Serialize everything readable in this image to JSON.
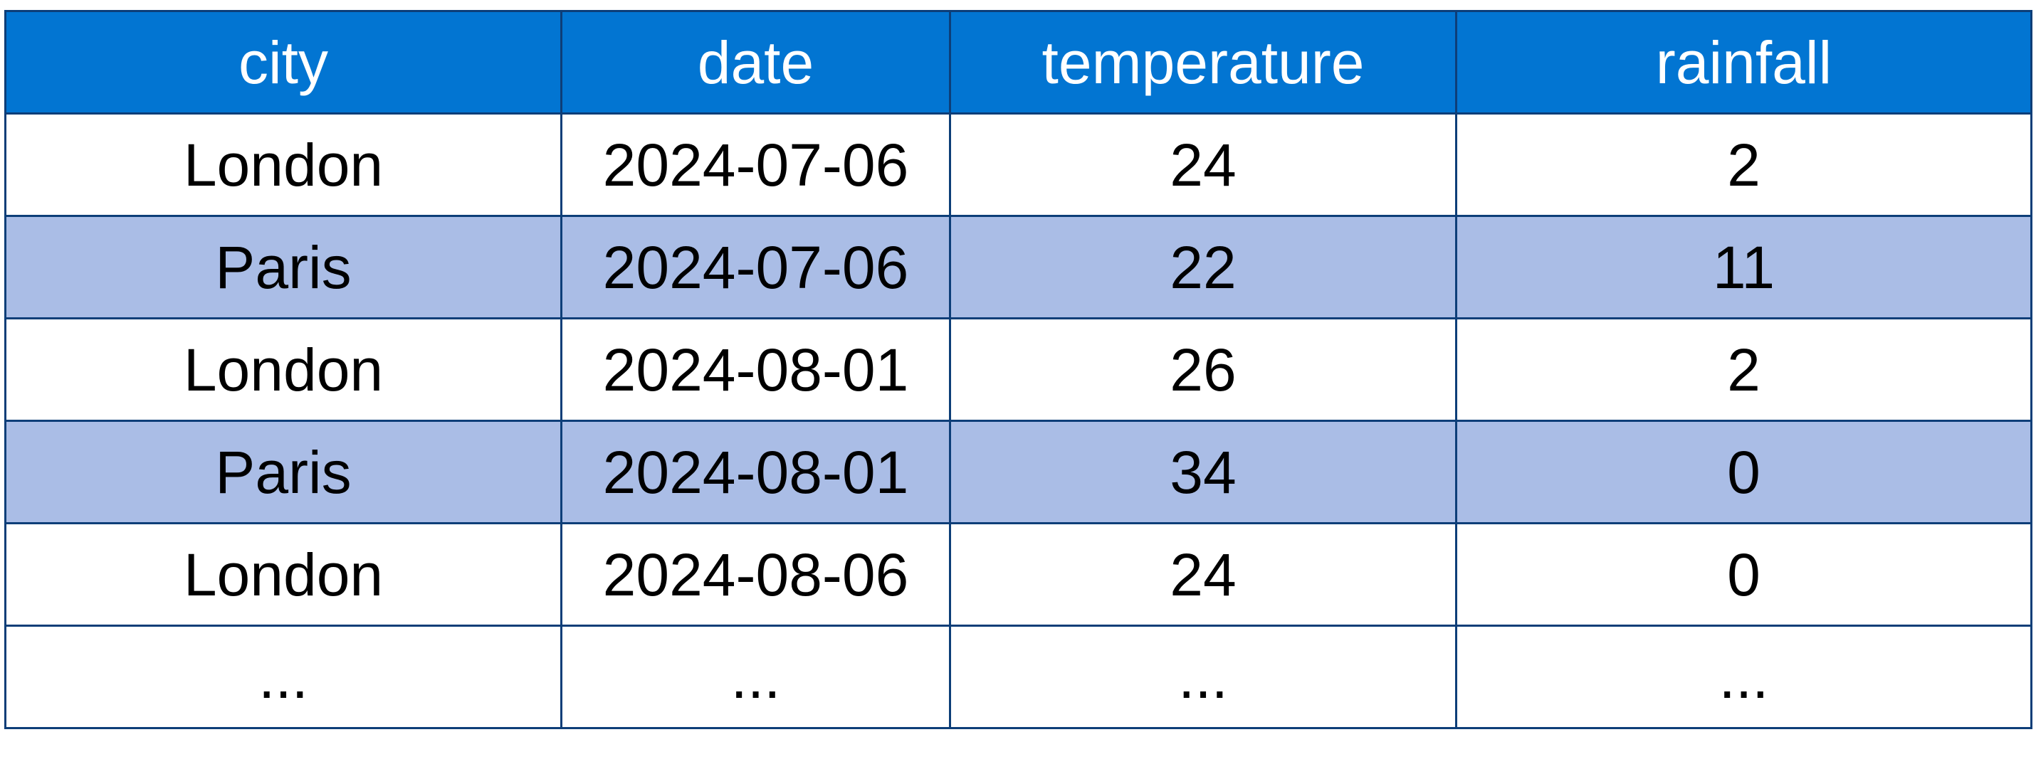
{
  "table": {
    "header_bg": "#0275d2",
    "band_bg": "#aabde6",
    "border_color": "#0d3e78",
    "columns": [
      "city",
      "date",
      "temperature",
      "rainfall"
    ],
    "rows": [
      [
        "London",
        "2024-07-06",
        "24",
        "2"
      ],
      [
        "Paris",
        "2024-07-06",
        "22",
        "11"
      ],
      [
        "London",
        "2024-08-01",
        "26",
        "2"
      ],
      [
        "Paris",
        "2024-08-01",
        "34",
        "0"
      ],
      [
        "London",
        "2024-08-06",
        "24",
        "0"
      ],
      [
        "...",
        "...",
        "...",
        "..."
      ]
    ]
  }
}
